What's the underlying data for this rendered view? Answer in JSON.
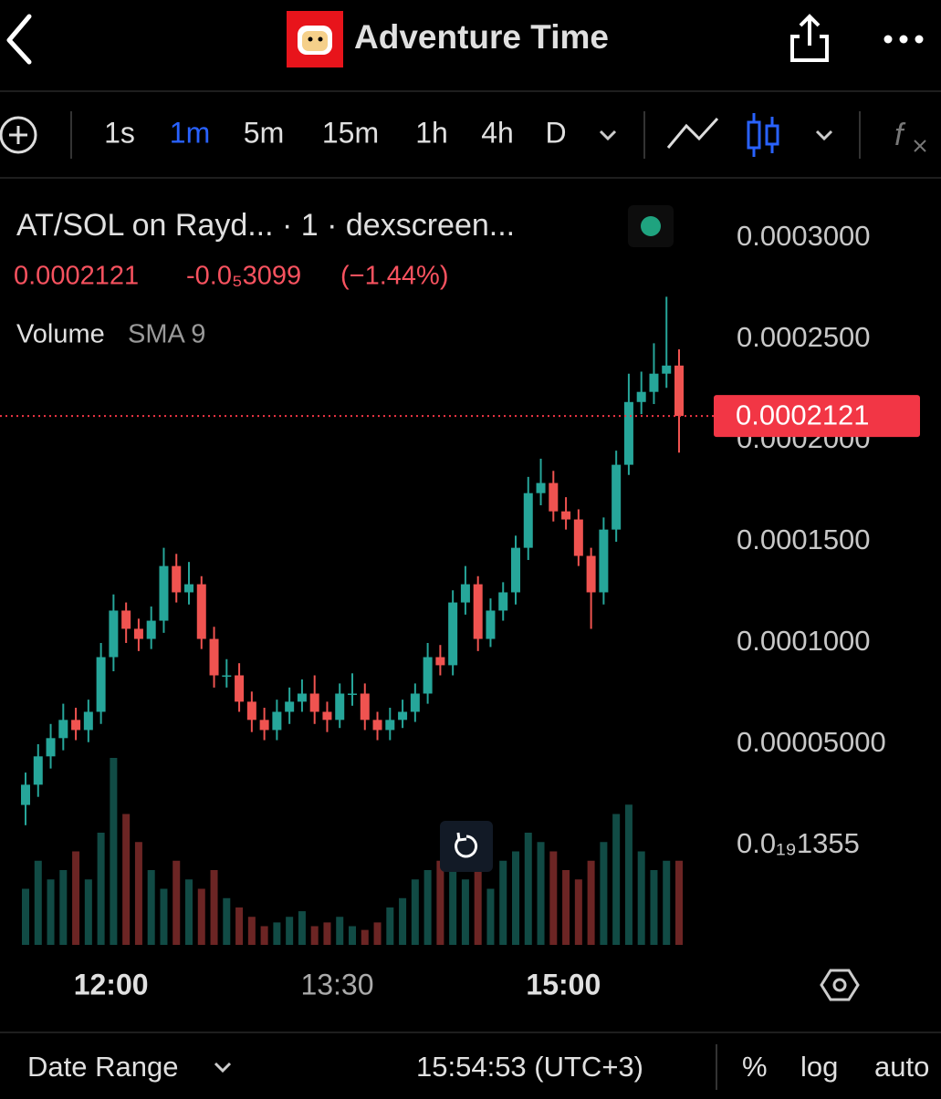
{
  "header": {
    "title": "Adventure Time"
  },
  "toolbar": {
    "intervals": [
      "1s",
      "1m",
      "5m",
      "15m",
      "1h",
      "4h",
      "D"
    ],
    "active_interval": 1
  },
  "chart_data": {
    "type": "candlestick",
    "title": "AT/SOL on Rayd... · 1 · dexscreen...",
    "price": "0.0002121",
    "change": "-0.0₅3099",
    "change_percent": "(−1.44%)",
    "indicator": "Volume",
    "indicator_setting": "SMA 9",
    "up_color": "#26a69a",
    "down_color": "#ef5350",
    "open": [
      2e-05,
      3e-05,
      4.4e-05,
      5.3e-05,
      6.2e-05,
      5.7e-05,
      6.6e-05,
      9.3e-05,
      0.000116,
      0.000107,
      0.000102,
      0.000111,
      0.000138,
      0.000125,
      0.000129,
      0.000102,
      8.4e-05,
      8.4e-05,
      7.1e-05,
      6.2e-05,
      5.7e-05,
      6.6e-05,
      7.1e-05,
      7.5e-05,
      6.6e-05,
      6.2e-05,
      7.5e-05,
      7.5e-05,
      6.2e-05,
      5.7e-05,
      6.2e-05,
      6.6e-05,
      7.5e-05,
      9.3e-05,
      8.9e-05,
      0.00012,
      0.000129,
      0.000102,
      0.000116,
      0.000125,
      0.000147,
      0.000174,
      0.000179,
      0.000165,
      0.000161,
      0.000143,
      0.000125,
      0.000156,
      0.000188,
      0.000219,
      0.000224,
      0.000233,
      0.000237
    ],
    "high": [
      3.6e-05,
      5e-05,
      6e-05,
      7e-05,
      6.8e-05,
      7.2e-05,
      0.0001,
      0.000124,
      0.00012,
      0.000112,
      0.000118,
      0.000147,
      0.000144,
      0.00014,
      0.000133,
      0.000108,
      9.2e-05,
      9e-05,
      7.6e-05,
      6.8e-05,
      7.2e-05,
      7.8e-05,
      8.2e-05,
      8.4e-05,
      7.1e-05,
      8e-05,
      8.5e-05,
      8e-05,
      6.6e-05,
      6.8e-05,
      7.2e-05,
      8e-05,
      0.0001,
      9.9e-05,
      0.000126,
      0.000138,
      0.000133,
      0.000122,
      0.00013,
      0.000153,
      0.000182,
      0.000191,
      0.000185,
      0.000172,
      0.000166,
      0.000147,
      0.000162,
      0.000195,
      0.000233,
      0.000234,
      0.000248,
      0.000271,
      0.000245
    ],
    "low": [
      1e-05,
      2.4e-05,
      3.8e-05,
      4.7e-05,
      5.2e-05,
      5.1e-05,
      6e-05,
      8.6e-05,
      0.0001,
      9.6e-05,
      9.7e-05,
      0.000105,
      0.00012,
      0.000119,
      9.7e-05,
      7.8e-05,
      7.8e-05,
      6.6e-05,
      5.6e-05,
      5.2e-05,
      5.2e-05,
      6e-05,
      6.6e-05,
      6e-05,
      5.6e-05,
      5.8e-05,
      6.9e-05,
      5.7e-05,
      5.2e-05,
      5.2e-05,
      5.8e-05,
      6.1e-05,
      7e-05,
      8.4e-05,
      8.4e-05,
      0.000114,
      9.6e-05,
      9.8e-05,
      0.000111,
      0.000119,
      0.000141,
      0.000168,
      0.00016,
      0.000156,
      0.000138,
      0.000107,
      0.000119,
      0.00015,
      0.000183,
      0.000213,
      0.000218,
      0.000226,
      0.000194
    ],
    "close": [
      3e-05,
      4.4e-05,
      5.3e-05,
      6.2e-05,
      5.7e-05,
      6.6e-05,
      9.3e-05,
      0.000116,
      0.000107,
      0.000102,
      0.000111,
      0.000138,
      0.000125,
      0.000129,
      0.000102,
      8.4e-05,
      8.4e-05,
      7.1e-05,
      6.2e-05,
      5.7e-05,
      6.6e-05,
      7.1e-05,
      7.5e-05,
      6.6e-05,
      6.2e-05,
      7.5e-05,
      7.5e-05,
      6.2e-05,
      5.7e-05,
      6.2e-05,
      6.6e-05,
      7.5e-05,
      9.3e-05,
      8.9e-05,
      0.00012,
      0.000129,
      0.000102,
      0.000116,
      0.000125,
      0.000147,
      0.000174,
      0.000179,
      0.000165,
      0.000161,
      0.000143,
      0.000125,
      0.000156,
      0.000188,
      0.000219,
      0.000224,
      0.000233,
      0.000237,
      0.0002121
    ],
    "volume": [
      30,
      45,
      35,
      40,
      50,
      35,
      60,
      100,
      70,
      55,
      40,
      30,
      45,
      35,
      30,
      40,
      25,
      20,
      15,
      10,
      12,
      15,
      18,
      10,
      12,
      15,
      10,
      8,
      12,
      20,
      25,
      35,
      40,
      45,
      55,
      35,
      40,
      30,
      45,
      50,
      60,
      55,
      50,
      40,
      35,
      45,
      55,
      70,
      75,
      50,
      40,
      45,
      45
    ],
    "ylim": [
      -5.09e-05,
      0.0003252
    ],
    "yticks": [
      {
        "value": 0.0003,
        "label": "0.0003000"
      },
      {
        "value": 0.00025,
        "label": "0.0002500"
      },
      {
        "value": 0.0002,
        "label": "0.0002000"
      },
      {
        "value": 0.00015,
        "label": "0.0001500"
      },
      {
        "value": 0.0001,
        "label": "0.0001000"
      },
      {
        "value": 5e-05,
        "label": "0.00005000"
      },
      {
        "value": 1.355e-20,
        "label": "0.0₁₉1355"
      }
    ],
    "xticks": [
      {
        "value": 6.8,
        "label": "12:00"
      },
      {
        "value": 24.8,
        "label": "13:30"
      },
      {
        "value": 42.8,
        "label": "15:00"
      }
    ],
    "last_price": {
      "value": 0.0002121,
      "label": "0.0002121"
    }
  },
  "footer": {
    "date_range": "Date Range",
    "time": "15:54:53 (UTC+3)",
    "percent": "%",
    "log": "log",
    "auto": "auto"
  }
}
